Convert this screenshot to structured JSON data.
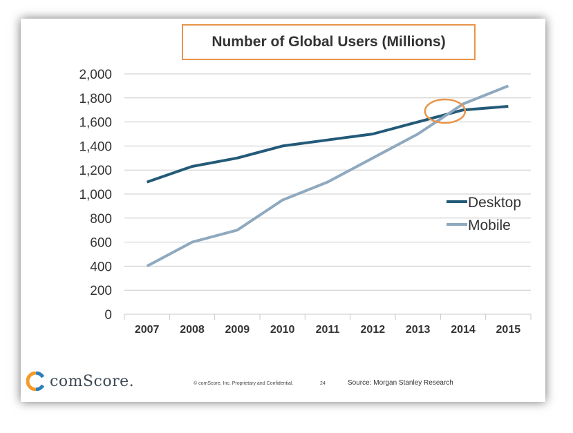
{
  "chart_data": {
    "type": "line",
    "title": "Number of Global Users (Millions)",
    "categories": [
      "2007",
      "2008",
      "2009",
      "2010",
      "2011",
      "2012",
      "2013",
      "2014",
      "2015"
    ],
    "series": [
      {
        "name": "Desktop",
        "color": "#235a78",
        "values": [
          1100,
          1230,
          1300,
          1400,
          1450,
          1500,
          1600,
          1700,
          1730
        ]
      },
      {
        "name": "Mobile",
        "color": "#8fa9bf",
        "values": [
          400,
          600,
          700,
          950,
          1100,
          1300,
          1500,
          1750,
          1900
        ]
      }
    ],
    "ylim": [
      0,
      2000
    ],
    "yticks": [
      "0",
      "200",
      "400",
      "600",
      "800",
      "1,000",
      "1,200",
      "1,400",
      "1,600",
      "1,800",
      "2,000"
    ],
    "ytick_values": [
      0,
      200,
      400,
      600,
      800,
      1000,
      1200,
      1400,
      1600,
      1800,
      2000
    ],
    "grid": true,
    "legend_position": "right",
    "annotation": {
      "type": "ellipse",
      "color": "#e8944a",
      "near": "2013-2014 crossover",
      "center_x": 13.6,
      "center_y": 1690
    }
  },
  "footer": {
    "logo_text": "comScore.",
    "confidential": "© comScore, Inc.  Proprietary and Confidential.",
    "page": "24",
    "source": "Source: Morgan Stanley Research"
  },
  "colors": {
    "accent": "#e8944a",
    "grid": "#c8c8c8"
  }
}
